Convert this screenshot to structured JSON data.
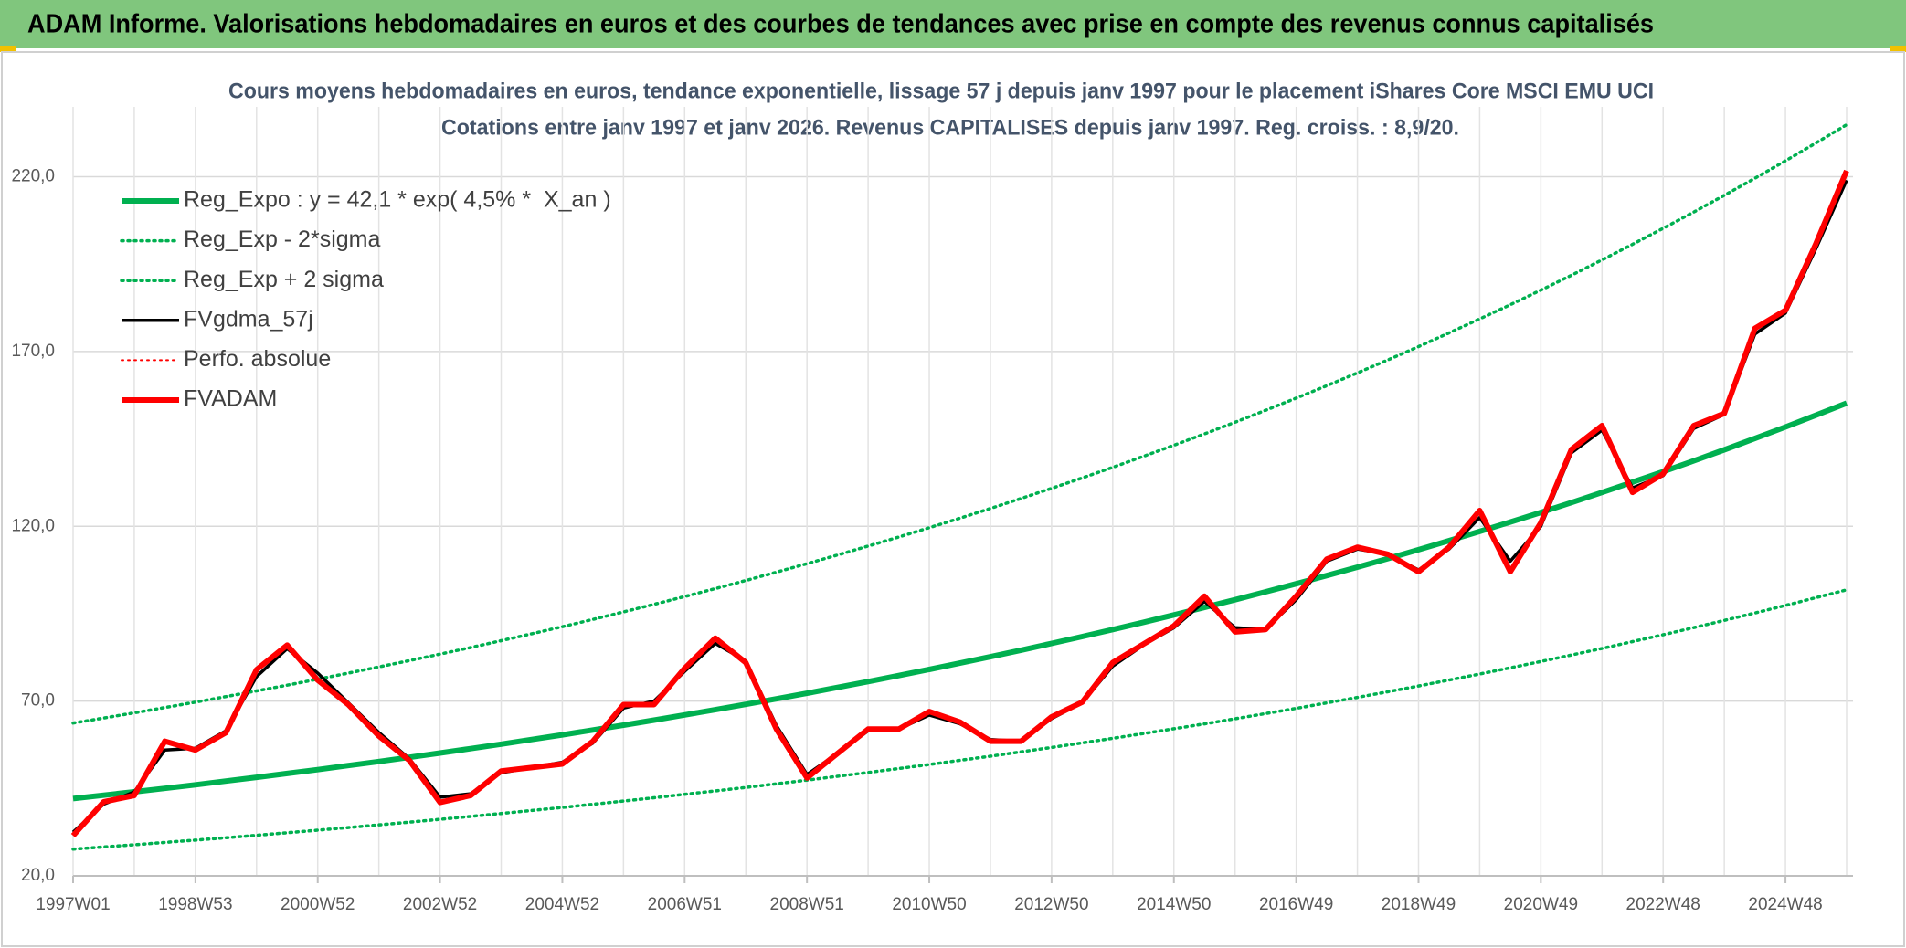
{
  "header": {
    "title": "ADAM Informe. Valorisations hebdomadaires en euros et des courbes de tendances avec prise en compte des revenus connus capitalisés"
  },
  "chart_data": {
    "type": "line",
    "title": "Cours moyens hebdomadaires en euros, tendance exponentielle, lissage 57 j depuis janv 1997 pour le placement iShares Core MSCI EMU UCI",
    "subtitle": "Cotations entre janv 1997 et janv 2026. Revenus CAPITALISES depuis janv 1997. Reg. croiss. : 8,9/20.",
    "categories": [
      "1997W01",
      null,
      null,
      null,
      "1998W53",
      null,
      null,
      null,
      "2000W52",
      null,
      null,
      null,
      "2002W52",
      null,
      null,
      null,
      "2004W52",
      null,
      null,
      null,
      "2006W51",
      null,
      null,
      null,
      "2008W51",
      null,
      null,
      null,
      "2010W50",
      null,
      null,
      null,
      "2012W50",
      null,
      null,
      null,
      "2014W50",
      null,
      null,
      null,
      "2016W49",
      null,
      null,
      null,
      "2018W49",
      null,
      null,
      null,
      "2020W49",
      null,
      null,
      null,
      "2022W48",
      null,
      null,
      null,
      "2024W48",
      null,
      null
    ],
    "ylim": [
      20,
      240
    ],
    "yticks": [
      {
        "value": 20,
        "label": "20,0"
      },
      {
        "value": 70,
        "label": "70,0"
      },
      {
        "value": 120,
        "label": "120,0"
      },
      {
        "value": 170,
        "label": "170,0"
      },
      {
        "value": 220,
        "label": "220,0"
      }
    ],
    "grid": true,
    "legend": "top-left",
    "series": [
      {
        "name": "Reg_Expo : y = 42,1 * exp( 4,5% *  X_an )",
        "color": "#00b050",
        "line_style": "solid",
        "line_weight": "thick",
        "values": [
          42.1,
          43.06,
          44.04,
          45.04,
          46.06,
          47.11,
          48.18,
          49.28,
          50.4,
          51.55,
          52.72,
          53.92,
          55.15,
          56.4,
          57.69,
          59.0,
          60.34,
          61.72,
          63.12,
          64.56,
          66.03,
          67.53,
          69.06,
          70.64,
          72.24,
          73.89,
          75.57,
          77.29,
          79.05,
          80.85,
          82.69,
          84.57,
          86.49,
          88.46,
          90.47,
          92.53,
          94.64,
          96.79,
          98.99,
          101.25,
          103.55,
          105.91,
          108.32,
          110.78,
          113.3,
          115.88,
          118.52,
          121.21,
          123.97,
          126.79,
          129.68,
          132.63,
          135.65,
          138.73,
          141.89,
          145.12,
          148.42,
          151.8,
          155.25
        ]
      },
      {
        "name": "Reg_Exp - 2*sigma",
        "color": "#00b050",
        "line_style": "dotted",
        "line_weight": "medium",
        "values": [
          27.62,
          28.25,
          28.89,
          29.55,
          30.21,
          30.9,
          31.61,
          32.33,
          33.06,
          33.82,
          34.58,
          35.37,
          36.18,
          37.0,
          37.84,
          38.7,
          39.58,
          40.49,
          41.41,
          42.35,
          43.32,
          44.3,
          45.3,
          46.34,
          47.39,
          48.47,
          49.57,
          50.7,
          51.86,
          53.04,
          54.24,
          55.48,
          56.74,
          58.03,
          59.35,
          60.7,
          62.08,
          63.49,
          64.94,
          66.42,
          67.93,
          69.48,
          71.06,
          72.67,
          74.33,
          76.02,
          77.75,
          79.52,
          81.32,
          83.17,
          85.07,
          87.01,
          88.99,
          91.01,
          93.08,
          95.2,
          97.36,
          99.59,
          101.84
        ]
      },
      {
        "name": "Reg_Exp + 2 sigma",
        "color": "#00b050",
        "line_style": "dotted",
        "line_weight": "medium",
        "values": [
          63.7,
          65.15,
          66.63,
          68.15,
          69.69,
          71.28,
          72.9,
          74.56,
          76.26,
          78.0,
          79.77,
          81.58,
          83.44,
          85.33,
          87.28,
          89.27,
          91.29,
          93.38,
          95.5,
          97.68,
          99.9,
          102.17,
          104.49,
          106.88,
          109.3,
          111.8,
          114.34,
          116.94,
          119.6,
          122.33,
          125.11,
          127.95,
          130.86,
          133.84,
          136.88,
          140.0,
          143.19,
          146.44,
          149.77,
          153.19,
          156.67,
          160.24,
          163.89,
          167.61,
          171.42,
          175.33,
          179.32,
          183.39,
          187.57,
          191.83,
          196.21,
          200.67,
          205.24,
          209.9,
          214.68,
          219.57,
          224.56,
          229.67,
          234.89
        ]
      },
      {
        "name": "FVgdma_57j",
        "color": "#000000",
        "line_style": "solid",
        "line_weight": "medium",
        "values": [
          32.5,
          40.5,
          44,
          56,
          56.5,
          61.5,
          77,
          85,
          78,
          69.5,
          61,
          53.5,
          42.5,
          43.5,
          49.5,
          51,
          52.5,
          58,
          68,
          70,
          78.5,
          86.5,
          81.5,
          63,
          49,
          55,
          61.5,
          62,
          66,
          63.5,
          59,
          58.5,
          65,
          69.5,
          80,
          86,
          91,
          98.5,
          91,
          90.5,
          99,
          110,
          113.5,
          112,
          107.5,
          113.5,
          122.5,
          110,
          120,
          141,
          147.5,
          131,
          134.5,
          148,
          152,
          175,
          181,
          199.5,
          219
        ]
      },
      {
        "name": "Perfo. absolue",
        "color": "#ff0000",
        "line_style": "dotted",
        "line_weight": "thin",
        "values": [
          null,
          null,
          null,
          null,
          null,
          null,
          null,
          null,
          null,
          null,
          null,
          null,
          null,
          null,
          null,
          null,
          null,
          null,
          null,
          null,
          null,
          null,
          null,
          null,
          null,
          null,
          null,
          null,
          null,
          null,
          null,
          null,
          null,
          null,
          null,
          null,
          null,
          null,
          null,
          null,
          null,
          null,
          null,
          null,
          null,
          null,
          null,
          null,
          null,
          null,
          null,
          null,
          null,
          null,
          null,
          null,
          null,
          null,
          null
        ]
      },
      {
        "name": "FVADAM",
        "color": "#ff0000",
        "line_style": "solid",
        "line_weight": "thick",
        "values": [
          31.5,
          41.2,
          43,
          58.5,
          56,
          61,
          79,
          86,
          76,
          69,
          60,
          53,
          41,
          43,
          50,
          51,
          52,
          58.5,
          69,
          69,
          79.4,
          88,
          81,
          62,
          48,
          55,
          62,
          62,
          67,
          64,
          58.5,
          58.5,
          65.5,
          69.7,
          81,
          86.3,
          91.5,
          100,
          89.8,
          90.5,
          100,
          110.6,
          114,
          112,
          107,
          114,
          124.5,
          107,
          121,
          142,
          148.8,
          129.7,
          135,
          148.8,
          152.3,
          176.6,
          181.8,
          200.9,
          221.7
        ]
      }
    ]
  }
}
